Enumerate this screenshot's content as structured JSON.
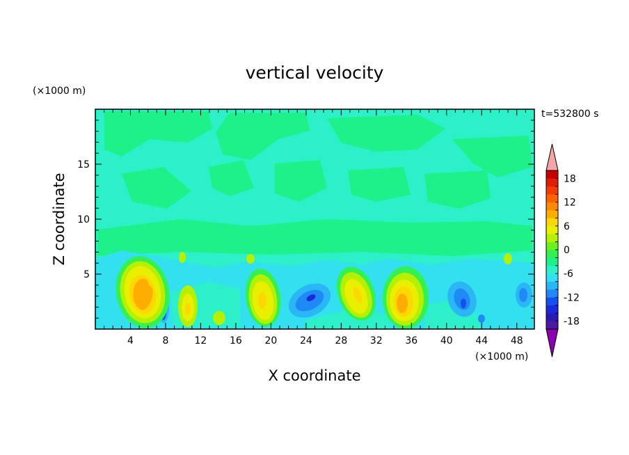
{
  "chart_data": {
    "type": "heatmap",
    "title": "vertical velocity",
    "xlabel": "X coordinate",
    "ylabel": "Z coordinate",
    "x_unit": "(×1000 m)",
    "y_unit": "(×1000 m)",
    "time_label": "t=532800 s",
    "xlim": [
      0,
      50
    ],
    "ylim": [
      0,
      20
    ],
    "xticks": [
      4,
      8,
      12,
      16,
      20,
      24,
      28,
      32,
      36,
      40,
      44,
      48
    ],
    "yticks": [
      5,
      10,
      15
    ],
    "colorbar": {
      "range": [
        -20,
        20
      ],
      "step": 2,
      "ticks": [
        18,
        12,
        6,
        0,
        -6,
        -12,
        -18
      ],
      "over_color": "#f4a6a6",
      "under_color": "#8a00b0",
      "colors": [
        "#4b1a9e",
        "#2a1bb0",
        "#1a2ad8",
        "#1450f0",
        "#1f8af5",
        "#2bb6f5",
        "#33e0f0",
        "#2cf0c8",
        "#1ef08a",
        "#34f050",
        "#6cf020",
        "#b4f000",
        "#e8f000",
        "#ffd800",
        "#ffae00",
        "#ff8a00",
        "#ff6200",
        "#f23c00",
        "#e01e00",
        "#c80000"
      ]
    },
    "features": [
      {
        "x": 5.2,
        "z": 2.8,
        "w": 6
      },
      {
        "x": 8.0,
        "z": 1.8,
        "w": -4
      },
      {
        "x": 10.5,
        "z": 2.3,
        "w": 2
      },
      {
        "x": 14.0,
        "z": 1.3,
        "w": 1
      },
      {
        "x": 19.0,
        "z": 3.0,
        "w": 3
      },
      {
        "x": 24.5,
        "z": 2.8,
        "w": -4
      },
      {
        "x": 29.6,
        "z": 3.2,
        "w": 3
      },
      {
        "x": 35.2,
        "z": 2.7,
        "w": 5
      },
      {
        "x": 41.5,
        "z": 2.6,
        "w": -4
      },
      {
        "x": 48.5,
        "z": 2.9,
        "w": -3
      }
    ]
  }
}
